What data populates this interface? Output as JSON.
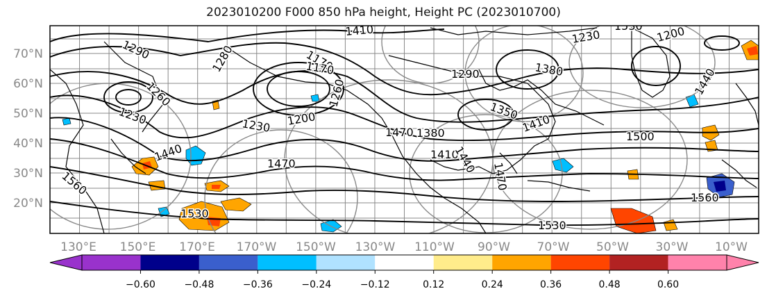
{
  "title": "2023010200 F000 850 hPa height, Height PC (2023010700)",
  "map": {
    "lat_labels": [
      "70°N",
      "60°N",
      "50°N",
      "40°N",
      "30°N",
      "20°N"
    ],
    "lon_labels": [
      "130°E",
      "150°E",
      "170°E",
      "170°W",
      "150°W",
      "130°W",
      "110°W",
      "90°W",
      "70°W",
      "50°W",
      "30°W",
      "10°W"
    ],
    "contour_labels": [
      "1290",
      "1410",
      "1530",
      "1230",
      "1200",
      "1170",
      "1260",
      "1230",
      "1280",
      "1170",
      "1200",
      "1230",
      "1260",
      "1290",
      "1350",
      "1380",
      "1410",
      "1440",
      "1470",
      "1500",
      "1560",
      "1530",
      "1440",
      "1470",
      "1530",
      "1560",
      "1380",
      "1470",
      "1410",
      "1440"
    ]
  },
  "colorbar": {
    "ticks": [
      "−0.60",
      "−0.48",
      "−0.36",
      "−0.24",
      "−0.12",
      "0.12",
      "0.24",
      "0.36",
      "0.48",
      "0.60"
    ],
    "colors": [
      "#9932cc",
      "#00008b",
      "#3a5fcd",
      "#00bfff",
      "#b0e2ff",
      "#ffffff",
      "#ffec8b",
      "#ffa500",
      "#ff4500",
      "#b22222",
      "#ff82ab"
    ]
  }
}
